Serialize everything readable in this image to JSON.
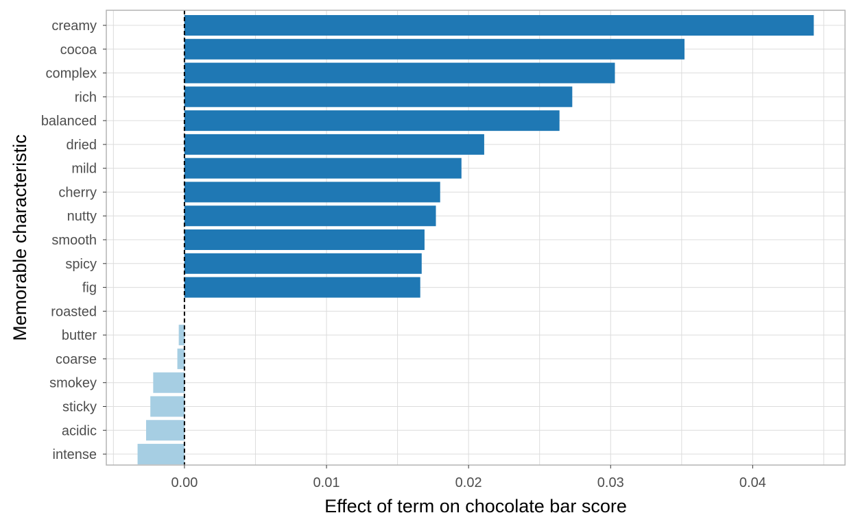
{
  "chart_data": {
    "type": "bar",
    "orientation": "horizontal",
    "xlabel": "Effect of term on chocolate bar score",
    "ylabel": "Memorable characteristic",
    "xlim": [
      -0.0055,
      0.0465
    ],
    "x_ticks": [
      0.0,
      0.01,
      0.02,
      0.03,
      0.04
    ],
    "x_tick_labels": [
      "0.00",
      "0.01",
      "0.02",
      "0.03",
      "0.04"
    ],
    "reference_line": 0.0,
    "grid": true,
    "colors": {
      "positive": "#1f78b4",
      "negative": "#a6cee3",
      "reference": "#000000",
      "grid": "#dcdcdc",
      "panel_border": "#b3b3b3"
    },
    "categories": [
      "creamy",
      "cocoa",
      "complex",
      "rich",
      "balanced",
      "dried",
      "mild",
      "cherry",
      "nutty",
      "smooth",
      "spicy",
      "fig",
      "roasted",
      "butter",
      "coarse",
      "smokey",
      "sticky",
      "acidic",
      "intense"
    ],
    "values": [
      0.0443,
      0.0352,
      0.0303,
      0.0273,
      0.0264,
      0.0211,
      0.0195,
      0.018,
      0.0177,
      0.0169,
      0.0167,
      0.0166,
      0.0,
      -0.0004,
      -0.0005,
      -0.0022,
      -0.0024,
      -0.0027,
      -0.0033
    ]
  }
}
